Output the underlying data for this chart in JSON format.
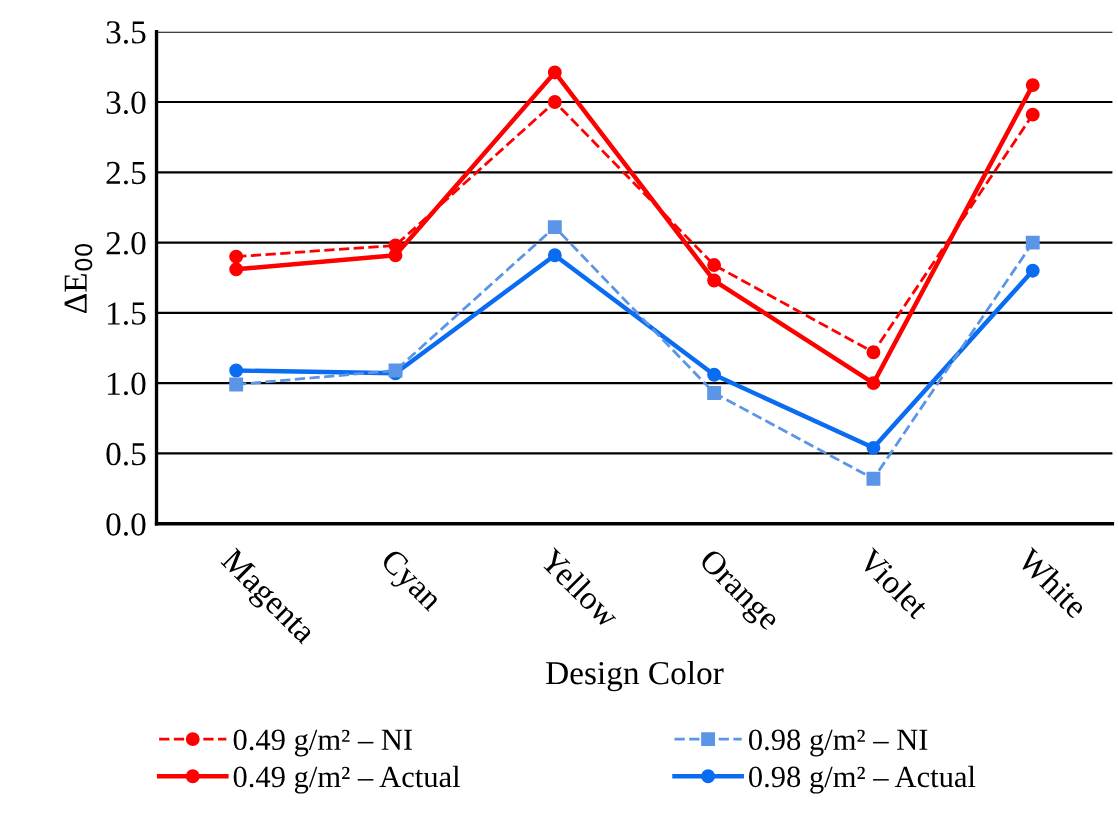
{
  "chart_data": {
    "type": "line",
    "xlabel": "Design Color",
    "ylabel": "ΔE$_{00}$",
    "categories": [
      "Magenta",
      "Cyan",
      "Yellow",
      "Orange",
      "Violet",
      "White"
    ],
    "series": [
      {
        "name": "0.49 g/m² – NI",
        "color": "#ff0000",
        "line_style": "dashed",
        "marker": "circle",
        "values": [
          1.9,
          1.98,
          3.0,
          1.84,
          1.22,
          2.91
        ]
      },
      {
        "name": "0.49 g/m² – Actual",
        "color": "#ff0000",
        "line_style": "solid",
        "marker": "circle",
        "values": [
          1.81,
          1.91,
          3.21,
          1.73,
          1.0,
          3.12
        ]
      },
      {
        "name": "0.98 g/m² – NI",
        "color": "#5b95e8",
        "line_style": "dashed",
        "marker": "square",
        "values": [
          0.99,
          1.09,
          2.11,
          0.93,
          0.32,
          2.0
        ]
      },
      {
        "name": "0.98 g/m² – Actual",
        "color": "#0a6cf0",
        "line_style": "solid",
        "marker": "circle",
        "values": [
          1.09,
          1.07,
          1.91,
          1.06,
          0.54,
          1.8
        ]
      }
    ],
    "ylim": [
      0,
      3.5
    ],
    "yticks": [
      {
        "value": 0,
        "label": "0.0"
      },
      {
        "value": 0.5,
        "label": "0.5"
      },
      {
        "value": 1,
        "label": "1.0"
      },
      {
        "value": 1.5,
        "label": "1.5"
      },
      {
        "value": 2,
        "label": "2.0"
      },
      {
        "value": 2.5,
        "label": "2.5"
      },
      {
        "value": 3,
        "label": "3.0"
      },
      {
        "value": 3.5,
        "label": "3.5"
      }
    ],
    "grid": "y",
    "legend": "bottom"
  }
}
